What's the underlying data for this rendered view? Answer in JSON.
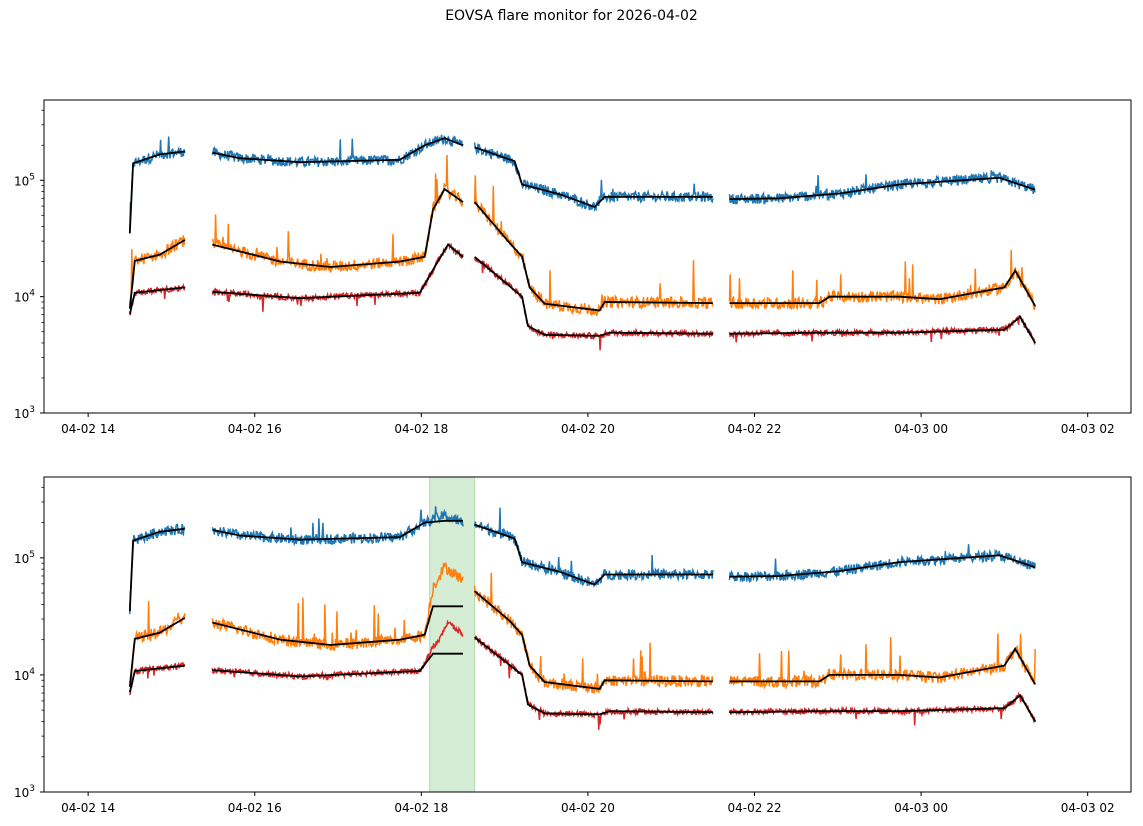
{
  "title": "EOVSA flare monitor for 2026-04-02",
  "colors": {
    "blue": "#1f77b4",
    "orange": "#ff7f0e",
    "red": "#d62728",
    "fit": "#000000",
    "flare_band": "#2ca02c"
  },
  "chart_data": [
    {
      "type": "line",
      "panel": "top",
      "title": "",
      "xlabel": "",
      "ylabel": "",
      "yscale": "log",
      "x_units": "hours since 2026-04-02 00:00 UT",
      "xlim": [
        13.47,
        26.52
      ],
      "ylim": [
        1000,
        490000
      ],
      "x_ticks": [
        14,
        16,
        18,
        20,
        22,
        24,
        26
      ],
      "x_tick_labels": [
        "04-02 14",
        "04-02 16",
        "04-02 18",
        "04-02 20",
        "04-02 22",
        "04-03 00",
        "04-03 02"
      ],
      "y_ticks": [
        1000,
        10000,
        100000
      ],
      "y_tick_labels": [
        [
          "10",
          "3"
        ],
        [
          "10",
          "4"
        ],
        [
          "10",
          "5"
        ]
      ],
      "grid": false,
      "legend": "none",
      "series": [
        {
          "name": "blue",
          "color": "#1f77b4",
          "segments": [
            [
              [
                14.5,
                35000
              ],
              [
                14.54,
                140000
              ],
              [
                14.86,
                167000
              ],
              [
                15.16,
                177000
              ]
            ],
            [
              [
                15.49,
                173000
              ],
              [
                15.82,
                155000
              ],
              [
                16.54,
                143000
              ],
              [
                17.74,
                150000
              ],
              [
                18.04,
                200000
              ],
              [
                18.28,
                230000
              ],
              [
                18.5,
                200000
              ]
            ],
            [
              [
                18.64,
                192000
              ],
              [
                19.12,
                146000
              ],
              [
                19.21,
                92000
              ],
              [
                19.66,
                76000
              ],
              [
                20.08,
                59000
              ],
              [
                20.2,
                72000
              ],
              [
                21.5,
                72000
              ]
            ],
            [
              [
                21.7,
                69000
              ],
              [
                22.3,
                70000
              ],
              [
                23.02,
                77000
              ],
              [
                23.74,
                92000
              ],
              [
                24.94,
                105000
              ],
              [
                25.37,
                83000
              ]
            ]
          ]
        },
        {
          "name": "orange",
          "color": "#ff7f0e",
          "segments": [
            [
              [
                14.5,
                7900
              ],
              [
                14.56,
                20300
              ],
              [
                14.86,
                23000
              ],
              [
                15.16,
                30700
              ]
            ],
            [
              [
                15.49,
                28000
              ],
              [
                16.31,
                20000
              ],
              [
                16.91,
                18000
              ],
              [
                17.74,
                20000
              ],
              [
                18.04,
                22000
              ],
              [
                18.14,
                56000
              ],
              [
                18.28,
                84000
              ],
              [
                18.5,
                65000
              ]
            ],
            [
              [
                18.64,
                65000
              ],
              [
                19.06,
                29000
              ],
              [
                19.21,
                22000
              ],
              [
                19.3,
                12000
              ],
              [
                19.48,
                8700
              ],
              [
                20.14,
                7600
              ],
              [
                20.2,
                9000
              ],
              [
                21.5,
                8800
              ]
            ],
            [
              [
                21.7,
                8800
              ],
              [
                22.78,
                8800
              ],
              [
                22.9,
                10000
              ],
              [
                23.74,
                10000
              ],
              [
                24.22,
                9500
              ],
              [
                25.0,
                12000
              ],
              [
                25.13,
                16700
              ],
              [
                25.37,
                8300
              ]
            ]
          ]
        },
        {
          "name": "red",
          "color": "#d62728",
          "segments": [
            [
              [
                14.5,
                7100
              ],
              [
                14.56,
                10800
              ],
              [
                15.16,
                12000
              ]
            ],
            [
              [
                15.49,
                11000
              ],
              [
                16.54,
                9700
              ],
              [
                17.98,
                10800
              ],
              [
                18.14,
                17000
              ],
              [
                18.32,
                28000
              ],
              [
                18.5,
                22000
              ]
            ],
            [
              [
                18.64,
                22000
              ],
              [
                19.21,
                10000
              ],
              [
                19.28,
                5600
              ],
              [
                19.48,
                4700
              ],
              [
                20.14,
                4600
              ],
              [
                20.26,
                4900
              ],
              [
                21.5,
                4800
              ]
            ],
            [
              [
                21.7,
                4800
              ],
              [
                22.78,
                4900
              ],
              [
                23.74,
                4900
              ],
              [
                25.0,
                5200
              ],
              [
                25.19,
                6700
              ],
              [
                25.37,
                4000
              ]
            ]
          ]
        }
      ]
    },
    {
      "type": "line",
      "panel": "bottom",
      "title": "",
      "xlabel": "",
      "ylabel": "",
      "yscale": "log",
      "x_units": "hours since 2026-04-02 00:00 UT",
      "xlim": [
        13.47,
        26.52
      ],
      "ylim": [
        1000,
        490000
      ],
      "x_ticks": [
        14,
        16,
        18,
        20,
        22,
        24,
        26
      ],
      "x_tick_labels": [
        "04-02 14",
        "04-02 16",
        "04-02 18",
        "04-02 20",
        "04-02 22",
        "04-03 00",
        "04-03 02"
      ],
      "y_ticks": [
        1000,
        10000,
        100000
      ],
      "y_tick_labels": [
        [
          "10",
          "3"
        ],
        [
          "10",
          "4"
        ],
        [
          "10",
          "5"
        ]
      ],
      "grid": false,
      "legend": "none",
      "shaded_interval": [
        18.1,
        18.64
      ],
      "series": [
        {
          "name": "blue",
          "color": "#1f77b4",
          "segments": [
            [
              [
                14.5,
                35000
              ],
              [
                14.54,
                140000
              ],
              [
                14.86,
                167000
              ],
              [
                15.16,
                177000
              ]
            ],
            [
              [
                15.49,
                173000
              ],
              [
                15.82,
                155000
              ],
              [
                16.54,
                143000
              ],
              [
                17.74,
                150000
              ],
              [
                18.04,
                200000
              ],
              [
                18.28,
                230000
              ],
              [
                18.5,
                200000
              ]
            ],
            [
              [
                18.64,
                192000
              ],
              [
                19.12,
                146000
              ],
              [
                19.21,
                92000
              ],
              [
                19.66,
                76000
              ],
              [
                20.08,
                59000
              ],
              [
                20.2,
                72000
              ],
              [
                21.5,
                72000
              ]
            ],
            [
              [
                21.7,
                69000
              ],
              [
                22.3,
                70000
              ],
              [
                23.02,
                77000
              ],
              [
                23.74,
                92000
              ],
              [
                24.94,
                105000
              ],
              [
                25.37,
                83000
              ]
            ]
          ]
        },
        {
          "name": "orange",
          "color": "#ff7f0e",
          "segments": [
            [
              [
                14.5,
                7900
              ],
              [
                14.56,
                20300
              ],
              [
                14.86,
                23000
              ],
              [
                15.16,
                30700
              ]
            ],
            [
              [
                15.49,
                28000
              ],
              [
                16.31,
                20000
              ],
              [
                16.91,
                18000
              ],
              [
                17.74,
                20000
              ],
              [
                18.04,
                22000
              ],
              [
                18.14,
                56000
              ],
              [
                18.28,
                84000
              ],
              [
                18.5,
                65000
              ]
            ],
            [
              [
                18.64,
                52000
              ],
              [
                19.06,
                29000
              ],
              [
                19.21,
                22000
              ],
              [
                19.3,
                12000
              ],
              [
                19.48,
                8700
              ],
              [
                20.14,
                7600
              ],
              [
                20.2,
                9000
              ],
              [
                21.5,
                8800
              ]
            ],
            [
              [
                21.7,
                8800
              ],
              [
                22.78,
                8800
              ],
              [
                22.9,
                10000
              ],
              [
                23.74,
                10000
              ],
              [
                24.22,
                9500
              ],
              [
                25.0,
                12000
              ],
              [
                25.13,
                16700
              ],
              [
                25.37,
                8300
              ]
            ]
          ]
        },
        {
          "name": "red",
          "color": "#d62728",
          "segments": [
            [
              [
                14.5,
                7100
              ],
              [
                14.56,
                10800
              ],
              [
                15.16,
                12000
              ]
            ],
            [
              [
                15.49,
                11000
              ],
              [
                16.54,
                9700
              ],
              [
                17.98,
                10800
              ],
              [
                18.14,
                17000
              ],
              [
                18.32,
                28000
              ],
              [
                18.5,
                22000
              ]
            ],
            [
              [
                18.64,
                21000
              ],
              [
                19.21,
                10000
              ],
              [
                19.28,
                5600
              ],
              [
                19.48,
                4700
              ],
              [
                20.14,
                4600
              ],
              [
                20.26,
                4900
              ],
              [
                21.5,
                4800
              ]
            ],
            [
              [
                21.7,
                4800
              ],
              [
                22.78,
                4900
              ],
              [
                23.74,
                4900
              ],
              [
                25.0,
                5200
              ],
              [
                25.19,
                6700
              ],
              [
                25.37,
                4000
              ]
            ]
          ]
        }
      ]
    }
  ]
}
